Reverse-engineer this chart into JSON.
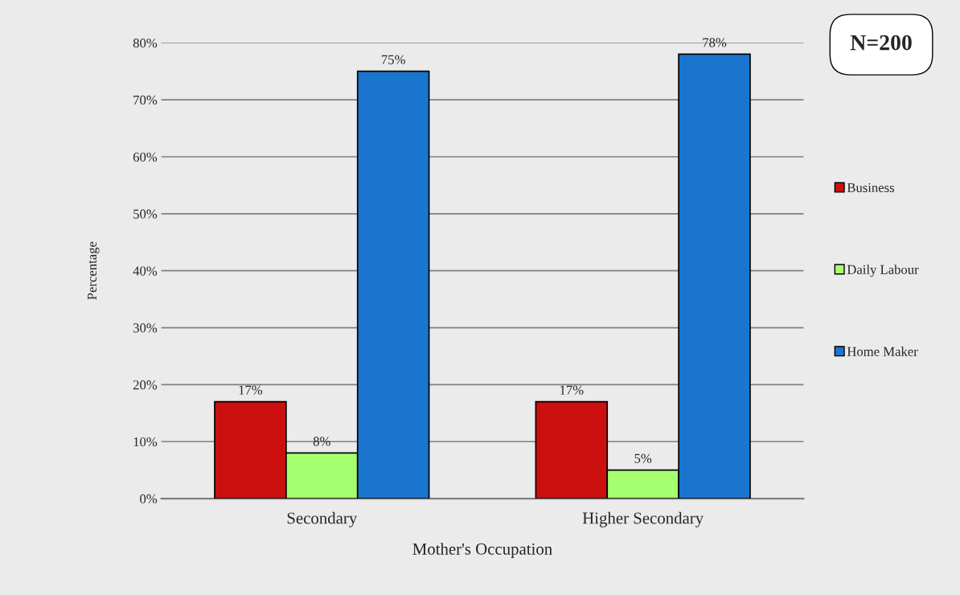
{
  "chart_data": {
    "type": "bar",
    "xlabel": "Mother's Occupation",
    "ylabel": "Percentage",
    "categories": [
      "Secondary",
      "Higher Secondary"
    ],
    "series": [
      {
        "name": "Business",
        "color": "#cc1010",
        "values": [
          17,
          17
        ],
        "value_labels": [
          "17%",
          "17%"
        ]
      },
      {
        "name": "Daily Labour",
        "color": "#a6ff6e",
        "values": [
          8,
          5
        ],
        "value_labels": [
          "8%",
          "5%"
        ]
      },
      {
        "name": "Home Maker",
        "color": "#1a75cf",
        "values": [
          75,
          78
        ],
        "value_labels": [
          "75%",
          "78%"
        ]
      }
    ],
    "ylim": [
      0,
      80
    ],
    "yticks": [
      {
        "value": 0,
        "label": "0%"
      },
      {
        "value": 10,
        "label": "10%"
      },
      {
        "value": 20,
        "label": "20%"
      },
      {
        "value": 30,
        "label": "30%"
      },
      {
        "value": 40,
        "label": "40%"
      },
      {
        "value": 50,
        "label": "50%"
      },
      {
        "value": 60,
        "label": "60%"
      },
      {
        "value": 70,
        "label": "70%"
      },
      {
        "value": 80,
        "label": "80%"
      }
    ],
    "grid": "y",
    "legend": "right",
    "annotations": [
      "N=200"
    ]
  }
}
